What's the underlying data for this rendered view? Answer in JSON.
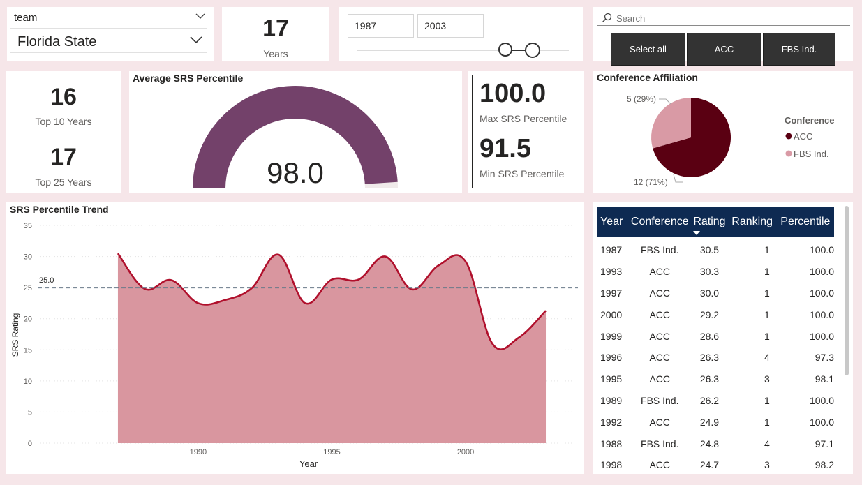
{
  "slicer": {
    "field": "team",
    "value": "Florida State"
  },
  "years_card": {
    "value": "17",
    "label": "Years"
  },
  "range": {
    "from": "1987",
    "to": "2003"
  },
  "conf_filter": {
    "search_placeholder": "Search",
    "buttons": [
      "Select all",
      "ACC",
      "FBS Ind."
    ]
  },
  "top_card": {
    "top10_value": "16",
    "top10_label": "Top 10 Years",
    "top25_value": "17",
    "top25_label": "Top 25 Years"
  },
  "gauge": {
    "title": "Average SRS Percentile",
    "value_text": "98.0",
    "value": 98.0,
    "max": 100,
    "fill_color": "#73416a"
  },
  "minmax": {
    "max_value": "100.0",
    "max_label": "Max SRS Percentile",
    "min_value": "91.5",
    "min_label": "Min SRS Percentile"
  },
  "pie": {
    "title": "Conference Affiliation",
    "legend_title": "Conference",
    "slices": [
      {
        "name": "ACC",
        "count": 12,
        "label": "12 (71%)",
        "color": "#5a0012"
      },
      {
        "name": "FBS Ind.",
        "count": 5,
        "label": "5 (29%)",
        "color": "#d99aa5"
      }
    ]
  },
  "chart_data": {
    "type": "area",
    "title": "SRS Percentile Trend",
    "xlabel": "Year",
    "ylabel": "SRS Rating",
    "x": [
      1987,
      1988,
      1989,
      1990,
      1991,
      1992,
      1993,
      1994,
      1995,
      1996,
      1997,
      1998,
      1999,
      2000,
      2001,
      2002,
      2003
    ],
    "y": [
      30.5,
      24.8,
      26.2,
      22.5,
      23.0,
      24.9,
      30.3,
      22.5,
      26.3,
      26.3,
      30.0,
      24.7,
      28.6,
      29.2,
      16.0,
      17.0,
      21.3
    ],
    "xticks": [
      1990,
      1995,
      2000
    ],
    "yticks": [
      0,
      5,
      10,
      15,
      20,
      25,
      30,
      35
    ],
    "xlim": [
      1984,
      2004.2
    ],
    "ylim": [
      0,
      35
    ],
    "reference_line": {
      "value": 25.0,
      "label": "25.0"
    },
    "fill_color": "#d9969f",
    "line_color": "#b0102c"
  },
  "table": {
    "columns": [
      "Year",
      "Conference",
      "Rating",
      "Ranking",
      "Percentile"
    ],
    "rows": [
      [
        "1987",
        "FBS Ind.",
        "30.5",
        "1",
        "100.0"
      ],
      [
        "1993",
        "ACC",
        "30.3",
        "1",
        "100.0"
      ],
      [
        "1997",
        "ACC",
        "30.0",
        "1",
        "100.0"
      ],
      [
        "2000",
        "ACC",
        "29.2",
        "1",
        "100.0"
      ],
      [
        "1999",
        "ACC",
        "28.6",
        "1",
        "100.0"
      ],
      [
        "1996",
        "ACC",
        "26.3",
        "4",
        "97.3"
      ],
      [
        "1995",
        "ACC",
        "26.3",
        "3",
        "98.1"
      ],
      [
        "1989",
        "FBS Ind.",
        "26.2",
        "1",
        "100.0"
      ],
      [
        "1992",
        "ACC",
        "24.9",
        "1",
        "100.0"
      ],
      [
        "1988",
        "FBS Ind.",
        "24.8",
        "4",
        "97.1"
      ],
      [
        "1998",
        "ACC",
        "24.7",
        "3",
        "98.2"
      ]
    ]
  }
}
